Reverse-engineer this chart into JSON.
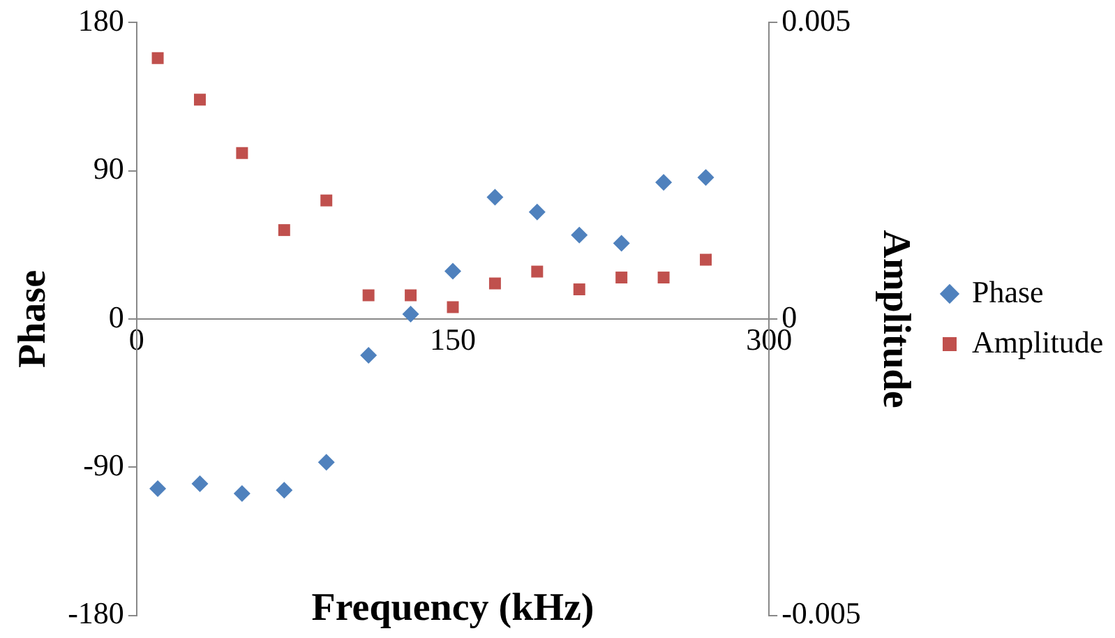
{
  "chart_data": {
    "type": "scatter",
    "xlabel": "Frequency (kHz)",
    "ylabel": "Phase",
    "y2label": "Amplitude",
    "xlim": [
      0,
      300
    ],
    "xticks": [
      0,
      150,
      300
    ],
    "ylim": [
      -180,
      180
    ],
    "yticks": [
      -180,
      -90,
      0,
      90,
      180
    ],
    "y2lim": [
      -0.005,
      0.005
    ],
    "y2ticks": [
      -0.005,
      0,
      0.005
    ],
    "grid": false,
    "legend": "right",
    "x": [
      10,
      30,
      50,
      70,
      90,
      110,
      130,
      150,
      170,
      190,
      210,
      230,
      250,
      270
    ],
    "series": [
      {
        "name": "Phase",
        "color": "#4f81bd",
        "marker": "diamond",
        "values": [
          -103,
          -100,
          -106,
          -104,
          -87,
          -22,
          3,
          29,
          74,
          65,
          51,
          46,
          83,
          86
        ]
      },
      {
        "name": "Amplitude",
        "color": "#c0504d",
        "marker": "square",
        "axis": "y2",
        "values": [
          0.0044,
          0.0037,
          0.0028,
          0.0015,
          0.002,
          0.0004,
          0.0004,
          0.0002,
          0.0006,
          0.0008,
          0.0005,
          0.0007,
          0.0007,
          0.001
        ]
      }
    ]
  }
}
